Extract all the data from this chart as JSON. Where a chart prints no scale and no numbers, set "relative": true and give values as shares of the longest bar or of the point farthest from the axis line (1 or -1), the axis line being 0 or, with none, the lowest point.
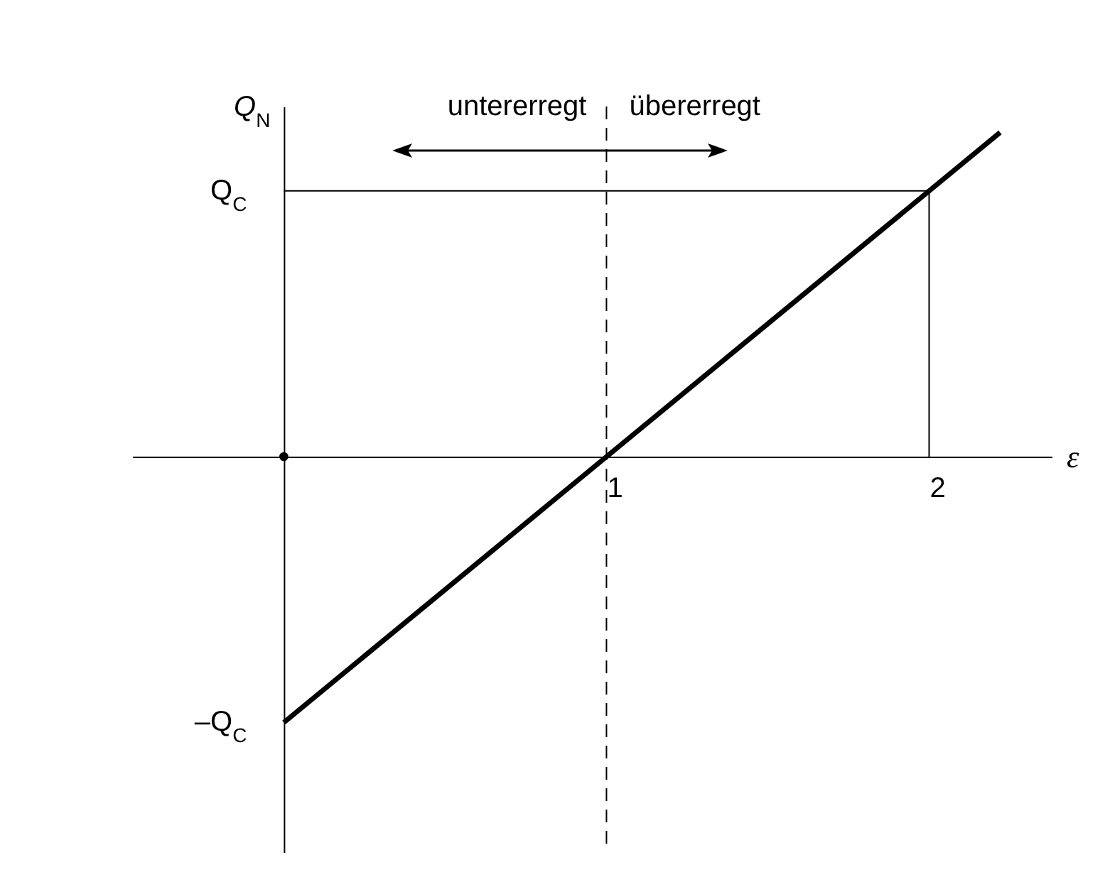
{
  "chart_data": {
    "type": "line",
    "relative": true,
    "xlabel": "ε",
    "ylabel": "Q$_{N}$",
    "annotations": [
      "untererregt",
      "übererregt",
      {
        "text": "Q$_{C}$",
        "x": 0,
        "y": 0.82
      },
      {
        "text": "–Q$_{C}$",
        "x": 0,
        "y": -0.82
      }
    ],
    "xlim": [
      -0.47,
      2.38
    ],
    "xticks": [
      1,
      2
    ],
    "series": [
      {
        "color": "#000000",
        "x": [
          0,
          2.22
        ],
        "values": [
          -0.82,
          1
        ]
      },
      {
        "type": "line",
        "color": "#000000",
        "x": [
          0,
          2,
          2
        ],
        "values": [
          0.82,
          0.82,
          0
        ]
      },
      {
        "type": "scatter",
        "color": "#000000",
        "x": [
          0
        ],
        "values": [
          0
        ],
        "marker": "circle"
      }
    ],
    "ref_lines": [
      {
        "axis": "x",
        "value": 1,
        "line_style": "dashed",
        "color": "#000000"
      }
    ],
    "grid": false
  }
}
